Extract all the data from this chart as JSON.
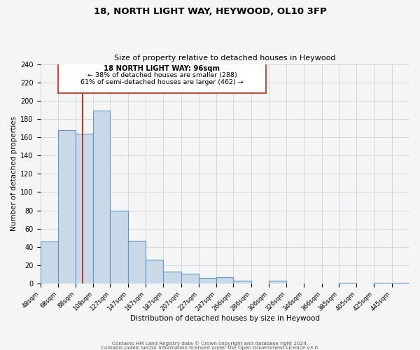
{
  "title": "18, NORTH LIGHT WAY, HEYWOOD, OL10 3FP",
  "subtitle": "Size of property relative to detached houses in Heywood",
  "xlabel": "Distribution of detached houses by size in Heywood",
  "ylabel": "Number of detached properties",
  "bar_labels": [
    "48sqm",
    "68sqm",
    "88sqm",
    "108sqm",
    "127sqm",
    "147sqm",
    "167sqm",
    "187sqm",
    "207sqm",
    "227sqm",
    "247sqm",
    "266sqm",
    "286sqm",
    "306sqm",
    "326sqm",
    "346sqm",
    "366sqm",
    "385sqm",
    "405sqm",
    "425sqm",
    "445sqm"
  ],
  "bar_heights": [
    46,
    168,
    164,
    189,
    80,
    47,
    26,
    13,
    11,
    6,
    7,
    3,
    0,
    3,
    0,
    0,
    0,
    1,
    0,
    1,
    1
  ],
  "bar_color": "#c9d9e8",
  "bar_edge_color": "#5b9ac6",
  "property_line_x": 96,
  "property_line_label": "18 NORTH LIGHT WAY: 96sqm",
  "annotation_line1": "← 38% of detached houses are smaller (288)",
  "annotation_line2": "61% of semi-detached houses are larger (462) →",
  "vline_color": "#c0392b",
  "box_edge_color": "#c0392b",
  "ylim": [
    0,
    240
  ],
  "yticks": [
    0,
    20,
    40,
    60,
    80,
    100,
    120,
    140,
    160,
    180,
    200,
    220,
    240
  ],
  "footer1": "Contains HM Land Registry data © Crown copyright and database right 2024.",
  "footer2": "Contains public sector information licensed under the Open Government Licence v3.0.",
  "bg_color": "#f5f5f5",
  "grid_color": "#c8d4de",
  "bin_edges": [
    48,
    68,
    88,
    108,
    127,
    147,
    167,
    187,
    207,
    227,
    247,
    266,
    286,
    306,
    326,
    346,
    366,
    385,
    405,
    425,
    445,
    465
  ]
}
